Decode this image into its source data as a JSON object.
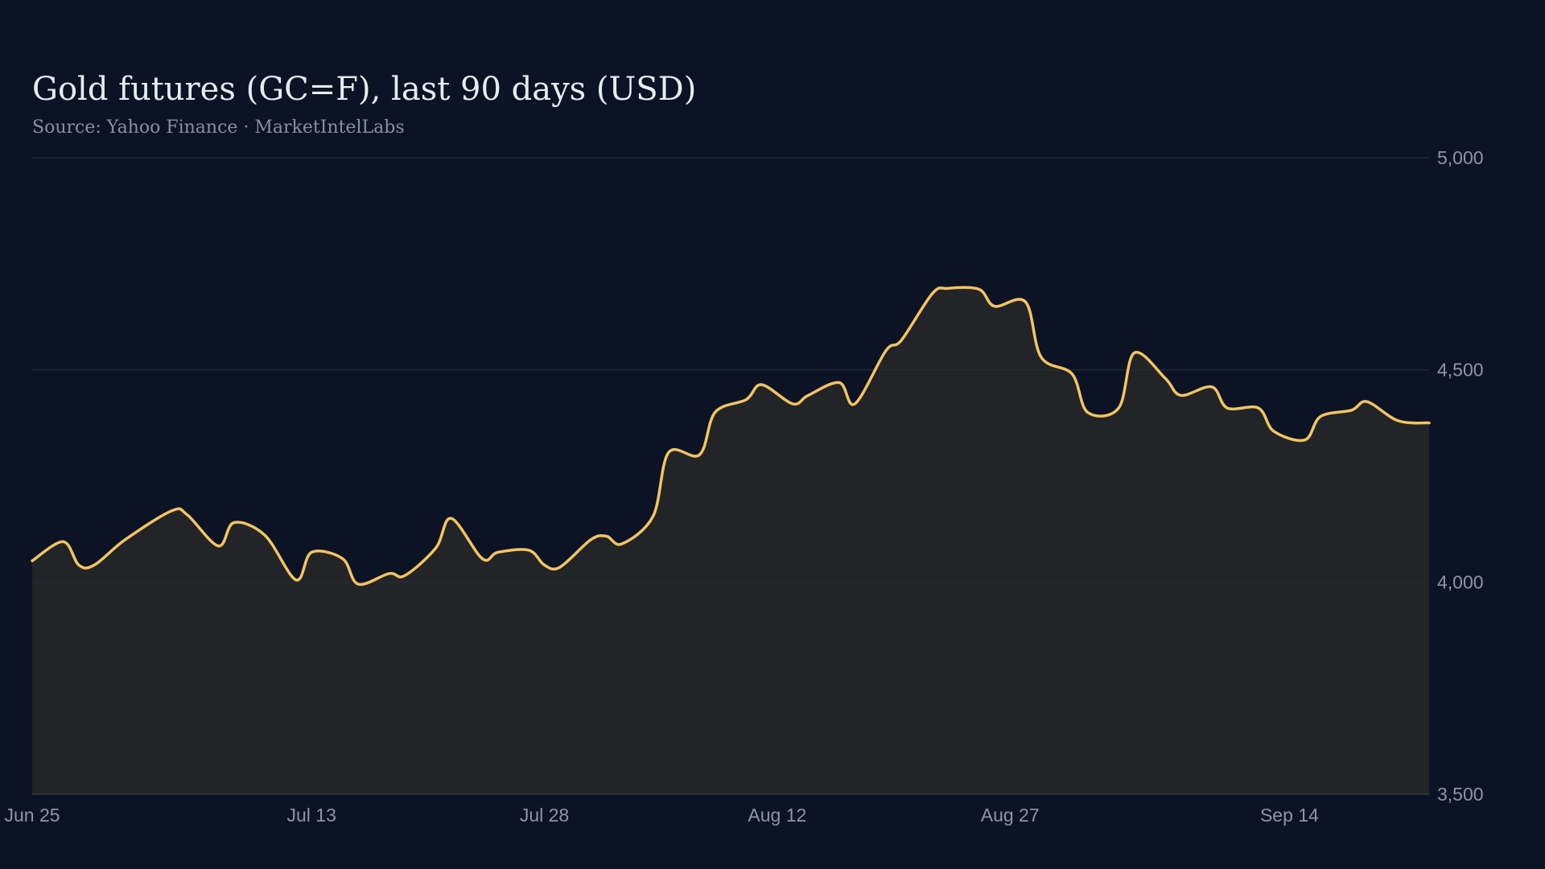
{
  "chart_data": {
    "type": "area",
    "title": "Gold futures (GC=F), last 90 days (USD)",
    "subtitle": "Source: Yahoo Finance · MarketIntelLabs",
    "xlabel": "",
    "ylabel": "",
    "ylim": [
      3500,
      5000
    ],
    "yticks": [
      3500,
      4000,
      4500,
      5000
    ],
    "ytick_labels": [
      "3,500",
      "4,000",
      "4,500",
      "5,000"
    ],
    "x_range": [
      "2025-06-25",
      "2025-09-23"
    ],
    "xticks": [
      {
        "date": "2025-06-25",
        "label": "Jun 25"
      },
      {
        "date": "2025-07-13",
        "label": "Jul 13"
      },
      {
        "date": "2025-07-28",
        "label": "Jul 28"
      },
      {
        "date": "2025-08-12",
        "label": "Aug 12"
      },
      {
        "date": "2025-08-27",
        "label": "Aug 27"
      },
      {
        "date": "2025-09-14",
        "label": "Sep 14"
      }
    ],
    "grid": true,
    "legend": "none",
    "line_color": "#f2c462",
    "fill_color": "#222428",
    "series": [
      {
        "x": [
          "2025-06-25",
          "2025-06-27",
          "2025-06-28",
          "2025-06-29",
          "2025-07-01",
          "2025-07-04",
          "2025-07-05",
          "2025-07-07",
          "2025-07-08",
          "2025-07-10",
          "2025-07-12",
          "2025-07-13",
          "2025-07-15",
          "2025-07-16",
          "2025-07-18",
          "2025-07-19",
          "2025-07-21",
          "2025-07-22",
          "2025-07-24",
          "2025-07-25",
          "2025-07-27",
          "2025-07-28",
          "2025-07-29",
          "2025-07-31",
          "2025-08-01",
          "2025-08-02",
          "2025-08-04",
          "2025-08-05",
          "2025-08-07",
          "2025-08-08",
          "2025-08-10",
          "2025-08-11",
          "2025-08-13",
          "2025-08-14",
          "2025-08-16",
          "2025-08-17",
          "2025-08-19",
          "2025-08-20",
          "2025-08-22",
          "2025-08-23",
          "2025-08-25",
          "2025-08-26",
          "2025-08-28",
          "2025-08-29",
          "2025-08-31",
          "2025-09-01",
          "2025-09-03",
          "2025-09-04",
          "2025-09-06",
          "2025-09-07",
          "2025-09-09",
          "2025-09-10",
          "2025-09-12",
          "2025-09-13",
          "2025-09-15",
          "2025-09-16",
          "2025-09-18",
          "2025-09-19",
          "2025-09-21",
          "2025-09-23"
        ],
        "values": [
          4050,
          4095,
          4040,
          4040,
          4100,
          4168,
          4158,
          4085,
          4140,
          4110,
          4005,
          4070,
          4055,
          3995,
          4020,
          4015,
          4080,
          4150,
          4055,
          4070,
          4075,
          4040,
          4035,
          4100,
          4108,
          4090,
          4155,
          4305,
          4300,
          4400,
          4430,
          4465,
          4420,
          4440,
          4470,
          4420,
          4545,
          4570,
          4680,
          4692,
          4690,
          4650,
          4660,
          4530,
          4490,
          4400,
          4410,
          4540,
          4480,
          4440,
          4460,
          4410,
          4410,
          4355,
          4335,
          4390,
          4405,
          4425,
          4380,
          4375
        ]
      }
    ]
  }
}
